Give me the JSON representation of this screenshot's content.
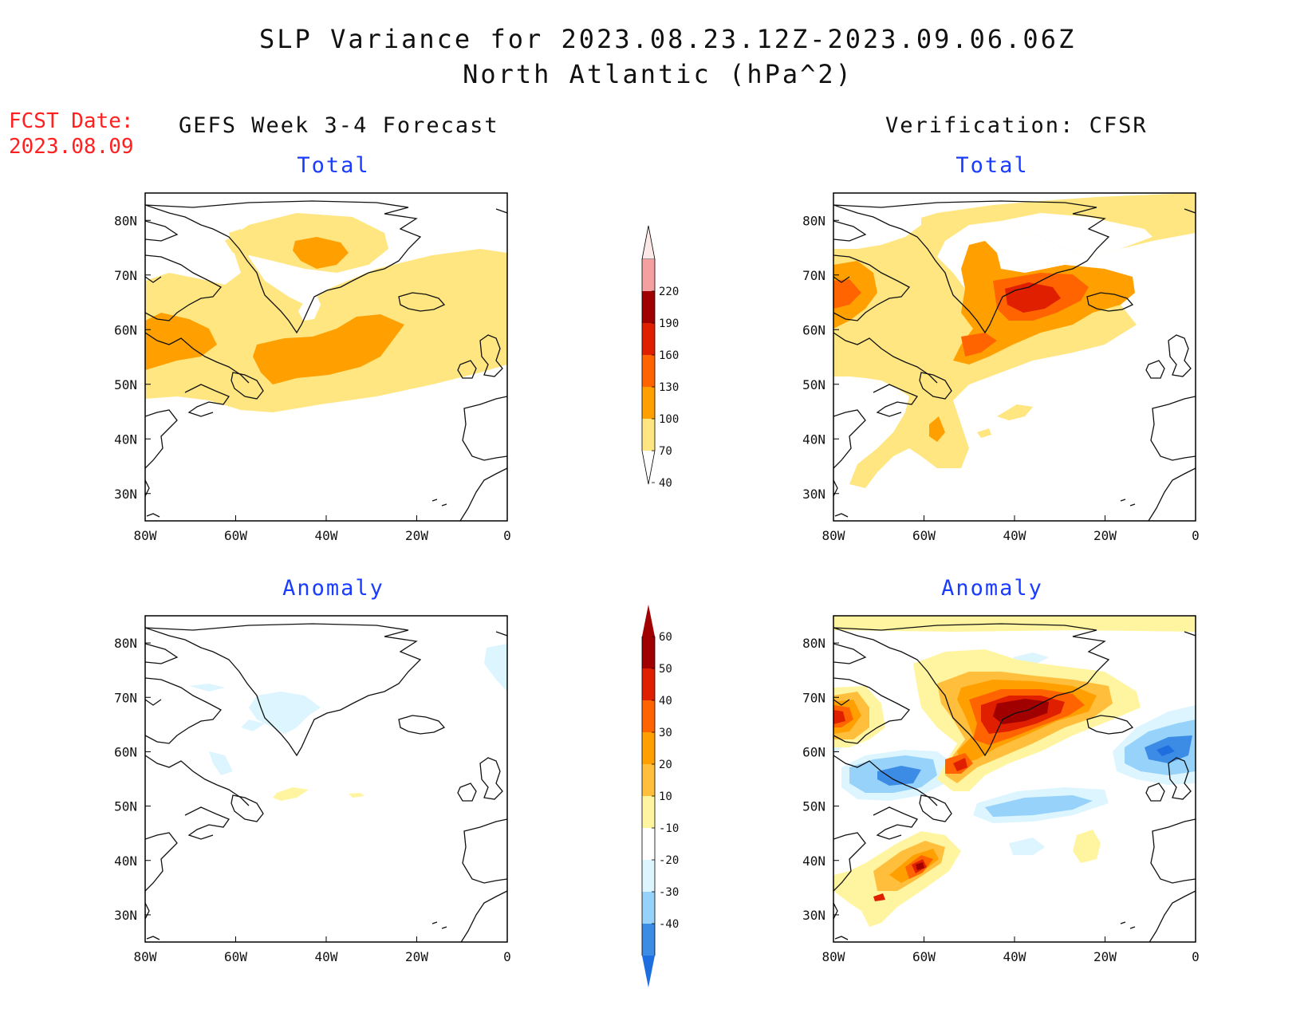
{
  "title": {
    "line1": "SLP Variance for 2023.08.23.12Z-2023.09.06.06Z",
    "line2": "North Atlantic (hPa^2)"
  },
  "fcst_date": {
    "label": "FCST Date:",
    "value": "2023.08.09"
  },
  "columns": {
    "left": "GEFS Week 3-4 Forecast",
    "right": "Verification: CFSR"
  },
  "panels": {
    "top_left": "Total",
    "top_right": "Total",
    "bottom_left": "Anomaly",
    "bottom_right": "Anomaly"
  },
  "axes": {
    "lat_labels": [
      "80N",
      "70N",
      "60N",
      "50N",
      "40N",
      "30N"
    ],
    "lon_labels": [
      "80W",
      "60W",
      "40W",
      "20W",
      "0"
    ]
  },
  "colorbar_total": {
    "levels": [
      "220",
      "190",
      "160",
      "130",
      "100",
      "70",
      "40"
    ],
    "colors": [
      "#fde8e8",
      "#f4a0a0",
      "#a00000",
      "#e01e00",
      "#ff6400",
      "#ffa000",
      "#ffe680"
    ]
  },
  "colorbar_anomaly": {
    "levels": [
      "60",
      "50",
      "40",
      "30",
      "20",
      "10",
      "-10",
      "-20",
      "-30",
      "-40"
    ],
    "colors": [
      "#a00000",
      "#e01e00",
      "#ff6400",
      "#ffa000",
      "#ffbe3c",
      "#fff5a0",
      "#ffffff",
      "#dcf5ff",
      "#96d2fa",
      "#3c8ce6",
      "#1e6ee0"
    ]
  }
}
